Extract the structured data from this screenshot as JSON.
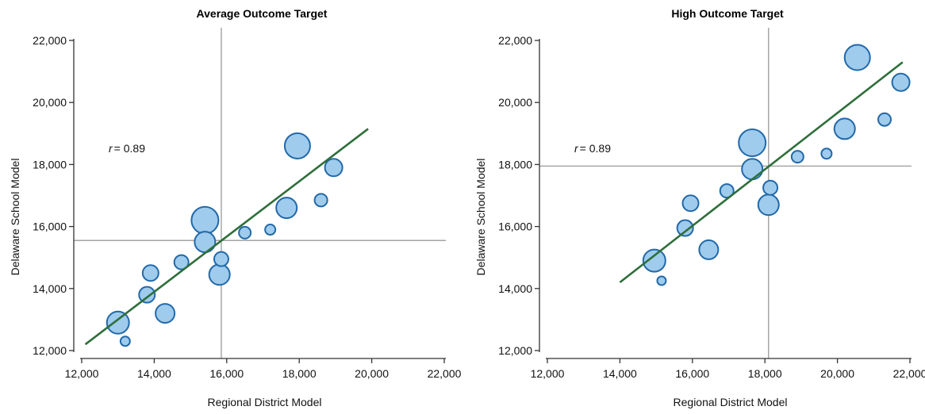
{
  "colors": {
    "bubble_fill": "#9fcbed",
    "bubble_stroke": "#2269a8",
    "fit_line": "#2e6e3a",
    "reference_line": "#9a9a9a",
    "axis": "#333333"
  },
  "chart_data": [
    {
      "type": "scatter",
      "title": "Average Outcome Target",
      "xlabel": "Regional District Model",
      "ylabel": "Delaware School Model",
      "xlim": [
        12000,
        22000
      ],
      "ylim": [
        12000,
        22000
      ],
      "xticks": [
        12000,
        14000,
        16000,
        18000,
        20000,
        22000
      ],
      "yticks": [
        12000,
        14000,
        16000,
        18000,
        20000,
        22000
      ],
      "xtick_labels": [
        "12,000",
        "14,000",
        "16,000",
        "18,000",
        "20,000",
        "22,000"
      ],
      "ytick_labels": [
        "12,000",
        "14,000",
        "16,000",
        "18,000",
        "20,000",
        "22,000"
      ],
      "r_prefix": "r",
      "r_value": "= 0.89",
      "reference_x": 15850,
      "reference_y": 15550,
      "fit_line": [
        [
          12100,
          12200
        ],
        [
          19900,
          19150
        ]
      ],
      "points": [
        {
          "x": 13000,
          "y": 12900,
          "size": 14
        },
        {
          "x": 13200,
          "y": 12300,
          "size": 6
        },
        {
          "x": 13800,
          "y": 13800,
          "size": 10
        },
        {
          "x": 13900,
          "y": 14500,
          "size": 10
        },
        {
          "x": 14300,
          "y": 13200,
          "size": 12
        },
        {
          "x": 14750,
          "y": 14850,
          "size": 9
        },
        {
          "x": 15400,
          "y": 16200,
          "size": 17
        },
        {
          "x": 15400,
          "y": 15500,
          "size": 13
        },
        {
          "x": 15800,
          "y": 14450,
          "size": 13
        },
        {
          "x": 15850,
          "y": 14950,
          "size": 9
        },
        {
          "x": 16500,
          "y": 15800,
          "size": 7.5
        },
        {
          "x": 17200,
          "y": 15900,
          "size": 6.5
        },
        {
          "x": 17650,
          "y": 16600,
          "size": 13
        },
        {
          "x": 17950,
          "y": 18600,
          "size": 16
        },
        {
          "x": 18600,
          "y": 16850,
          "size": 8
        },
        {
          "x": 18950,
          "y": 17900,
          "size": 11
        }
      ]
    },
    {
      "type": "scatter",
      "title": "High Outcome Target",
      "xlabel": "Regional District Model",
      "ylabel": "Delaware School Model",
      "xlim": [
        12000,
        22000
      ],
      "ylim": [
        12000,
        22000
      ],
      "xticks": [
        12000,
        14000,
        16000,
        18000,
        20000,
        22000
      ],
      "yticks": [
        12000,
        14000,
        16000,
        18000,
        20000,
        22000
      ],
      "xtick_labels": [
        "12,000",
        "14,000",
        "16,000",
        "18,000",
        "20,000",
        "22,000"
      ],
      "ytick_labels": [
        "12,000",
        "14,000",
        "16,000",
        "18,000",
        "20,000",
        "22,000"
      ],
      "r_prefix": "r",
      "r_value": "= 0.89",
      "reference_x": 18100,
      "reference_y": 17950,
      "fit_line": [
        [
          14000,
          14200
        ],
        [
          21800,
          21300
        ]
      ],
      "points": [
        {
          "x": 14950,
          "y": 14900,
          "size": 14
        },
        {
          "x": 15150,
          "y": 14250,
          "size": 5.5
        },
        {
          "x": 15800,
          "y": 15950,
          "size": 10
        },
        {
          "x": 15950,
          "y": 16750,
          "size": 10
        },
        {
          "x": 16450,
          "y": 15250,
          "size": 12
        },
        {
          "x": 16950,
          "y": 17150,
          "size": 8.5
        },
        {
          "x": 17650,
          "y": 18700,
          "size": 17
        },
        {
          "x": 17650,
          "y": 17850,
          "size": 13
        },
        {
          "x": 18100,
          "y": 16700,
          "size": 13
        },
        {
          "x": 18150,
          "y": 17250,
          "size": 9
        },
        {
          "x": 18900,
          "y": 18250,
          "size": 7.5
        },
        {
          "x": 19700,
          "y": 18350,
          "size": 6.5
        },
        {
          "x": 20200,
          "y": 19150,
          "size": 13
        },
        {
          "x": 20550,
          "y": 21450,
          "size": 16
        },
        {
          "x": 21300,
          "y": 19450,
          "size": 8
        },
        {
          "x": 21750,
          "y": 20650,
          "size": 11
        }
      ]
    }
  ]
}
